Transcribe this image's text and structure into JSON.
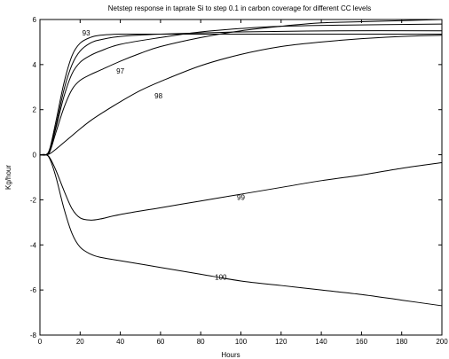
{
  "chart_data": {
    "type": "line",
    "title": "Netstep response in taprate Si to step 0.1 in carbon coverage for different CC levels",
    "xlabel": "Hours",
    "ylabel": "Kg/hour",
    "xlim": [
      0,
      200
    ],
    "ylim": [
      -8,
      6
    ],
    "xticks": [
      0,
      20,
      40,
      60,
      80,
      100,
      120,
      140,
      160,
      180,
      200
    ],
    "yticks": [
      -8,
      -6,
      -4,
      -2,
      0,
      2,
      4,
      6
    ],
    "grid": false,
    "series": [
      {
        "name": "93",
        "label_at": [
          23,
          5.3
        ],
        "points": [
          [
            0,
            0
          ],
          [
            3,
            0
          ],
          [
            5,
            0.3
          ],
          [
            8,
            1.5
          ],
          [
            12,
            3.2
          ],
          [
            16,
            4.4
          ],
          [
            20,
            4.95
          ],
          [
            25,
            5.2
          ],
          [
            30,
            5.3
          ],
          [
            40,
            5.35
          ],
          [
            60,
            5.35
          ],
          [
            100,
            5.35
          ],
          [
            150,
            5.35
          ],
          [
            200,
            5.35
          ]
        ]
      },
      {
        "name": "",
        "label_at": null,
        "points": [
          [
            0,
            0
          ],
          [
            3,
            0
          ],
          [
            5,
            0.25
          ],
          [
            8,
            1.3
          ],
          [
            12,
            2.9
          ],
          [
            16,
            4.0
          ],
          [
            20,
            4.6
          ],
          [
            25,
            4.95
          ],
          [
            30,
            5.1
          ],
          [
            40,
            5.25
          ],
          [
            60,
            5.35
          ],
          [
            100,
            5.45
          ],
          [
            150,
            5.5
          ],
          [
            200,
            5.5
          ]
        ]
      },
      {
        "name": "",
        "label_at": null,
        "points": [
          [
            0,
            0
          ],
          [
            3,
            0
          ],
          [
            5,
            0.2
          ],
          [
            8,
            1.2
          ],
          [
            12,
            2.6
          ],
          [
            16,
            3.6
          ],
          [
            20,
            4.1
          ],
          [
            25,
            4.4
          ],
          [
            30,
            4.6
          ],
          [
            40,
            4.9
          ],
          [
            60,
            5.2
          ],
          [
            80,
            5.45
          ],
          [
            100,
            5.6
          ],
          [
            120,
            5.7
          ],
          [
            150,
            5.75
          ],
          [
            200,
            5.8
          ]
        ]
      },
      {
        "name": "97",
        "label_at": [
          40,
          3.6
        ],
        "points": [
          [
            0,
            0
          ],
          [
            3,
            0
          ],
          [
            5,
            0.15
          ],
          [
            8,
            1.0
          ],
          [
            12,
            2.1
          ],
          [
            16,
            2.9
          ],
          [
            20,
            3.3
          ],
          [
            25,
            3.55
          ],
          [
            30,
            3.75
          ],
          [
            40,
            4.15
          ],
          [
            50,
            4.5
          ],
          [
            60,
            4.8
          ],
          [
            80,
            5.2
          ],
          [
            100,
            5.5
          ],
          [
            120,
            5.7
          ],
          [
            140,
            5.85
          ],
          [
            160,
            5.9
          ],
          [
            200,
            6.0
          ]
        ]
      },
      {
        "name": "98",
        "label_at": [
          59,
          2.5
        ],
        "points": [
          [
            0,
            0
          ],
          [
            3,
            0
          ],
          [
            5,
            0.05
          ],
          [
            8,
            0.25
          ],
          [
            12,
            0.55
          ],
          [
            16,
            0.85
          ],
          [
            20,
            1.15
          ],
          [
            25,
            1.5
          ],
          [
            30,
            1.8
          ],
          [
            40,
            2.35
          ],
          [
            50,
            2.85
          ],
          [
            60,
            3.25
          ],
          [
            80,
            3.95
          ],
          [
            100,
            4.45
          ],
          [
            120,
            4.8
          ],
          [
            140,
            5.0
          ],
          [
            160,
            5.15
          ],
          [
            180,
            5.25
          ],
          [
            200,
            5.3
          ]
        ]
      },
      {
        "name": "99",
        "label_at": [
          100,
          -2.0
        ],
        "points": [
          [
            0,
            0
          ],
          [
            3,
            0
          ],
          [
            5,
            -0.15
          ],
          [
            8,
            -0.7
          ],
          [
            12,
            -1.6
          ],
          [
            16,
            -2.4
          ],
          [
            20,
            -2.8
          ],
          [
            25,
            -2.9
          ],
          [
            30,
            -2.85
          ],
          [
            40,
            -2.65
          ],
          [
            60,
            -2.35
          ],
          [
            80,
            -2.05
          ],
          [
            100,
            -1.75
          ],
          [
            120,
            -1.45
          ],
          [
            140,
            -1.15
          ],
          [
            160,
            -0.9
          ],
          [
            180,
            -0.6
          ],
          [
            200,
            -0.35
          ]
        ]
      },
      {
        "name": "100",
        "label_at": [
          90,
          -5.55
        ],
        "points": [
          [
            0,
            0
          ],
          [
            3,
            0
          ],
          [
            5,
            -0.2
          ],
          [
            8,
            -1.0
          ],
          [
            12,
            -2.4
          ],
          [
            16,
            -3.5
          ],
          [
            20,
            -4.1
          ],
          [
            25,
            -4.4
          ],
          [
            30,
            -4.55
          ],
          [
            40,
            -4.7
          ],
          [
            60,
            -5.0
          ],
          [
            80,
            -5.3
          ],
          [
            100,
            -5.6
          ],
          [
            120,
            -5.8
          ],
          [
            140,
            -6.0
          ],
          [
            160,
            -6.2
          ],
          [
            180,
            -6.45
          ],
          [
            200,
            -6.7
          ]
        ]
      }
    ]
  }
}
